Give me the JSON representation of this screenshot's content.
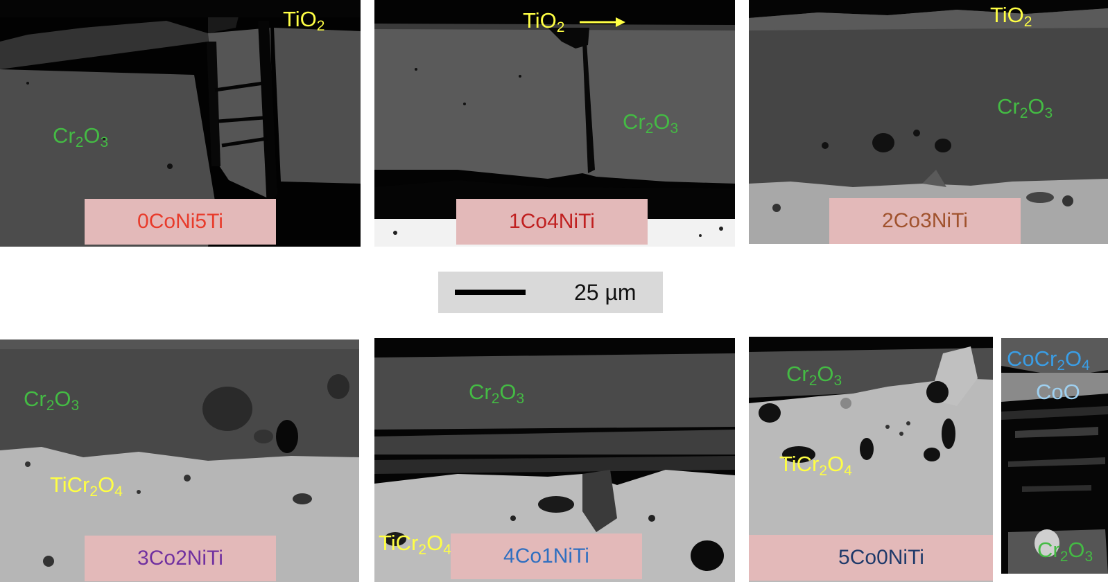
{
  "scale_bar": {
    "label": "25 µm"
  },
  "panels": [
    {
      "sample": "0CoNi5Ti",
      "sample_color": "#e83b2b",
      "phases": {
        "tio2": "TiO",
        "tio2_sub": "2",
        "cr2o3_a": "Cr",
        "cr2o3_sub1": "2",
        "cr2o3_b": "O",
        "cr2o3_sub2": "3"
      }
    },
    {
      "sample": "1Co4NiTi",
      "sample_color": "#c02020",
      "phases": {
        "tio2": "TiO",
        "tio2_sub": "2",
        "cr2o3_a": "Cr",
        "cr2o3_sub1": "2",
        "cr2o3_b": "O",
        "cr2o3_sub2": "3"
      }
    },
    {
      "sample": "2Co3NiTi",
      "sample_color": "#a0522d",
      "phases": {
        "tio2": "TiO",
        "tio2_sub": "2",
        "cr2o3_a": "Cr",
        "cr2o3_sub1": "2",
        "cr2o3_b": "O",
        "cr2o3_sub2": "3"
      }
    },
    {
      "sample": "3Co2NiTi",
      "sample_color": "#7030a0",
      "phases": {
        "cr2o3_a": "Cr",
        "cr2o3_sub1": "2",
        "cr2o3_b": "O",
        "cr2o3_sub2": "3",
        "ticr2o4_a": "TiCr",
        "ticr2o4_sub1": "2",
        "ticr2o4_b": "O",
        "ticr2o4_sub2": "4"
      }
    },
    {
      "sample": "4Co1NiTi",
      "sample_color": "#2f6fc0",
      "phases": {
        "cr2o3_a": "Cr",
        "cr2o3_sub1": "2",
        "cr2o3_b": "O",
        "cr2o3_sub2": "3",
        "ticr2o4_a": "TiCr",
        "ticr2o4_sub1": "2",
        "ticr2o4_b": "O",
        "ticr2o4_sub2": "4"
      }
    },
    {
      "sample": "5Co0NiTi",
      "sample_color": "#1f3a6a",
      "phases": {
        "cr2o3_a": "Cr",
        "cr2o3_sub1": "2",
        "cr2o3_b": "O",
        "cr2o3_sub2": "3",
        "ticr2o4_a": "TiCr",
        "ticr2o4_sub1": "2",
        "ticr2o4_b": "O",
        "ticr2o4_sub2": "4"
      }
    }
  ],
  "inset": {
    "cocr2o4_a": "CoCr",
    "cocr2o4_sub1": "2",
    "cocr2o4_b": "O",
    "cocr2o4_sub2": "4",
    "coo": "CoO",
    "cr2o3_a": "Cr",
    "cr2o3_sub1": "2",
    "cr2o3_b": "O",
    "cr2o3_sub2": "3"
  }
}
